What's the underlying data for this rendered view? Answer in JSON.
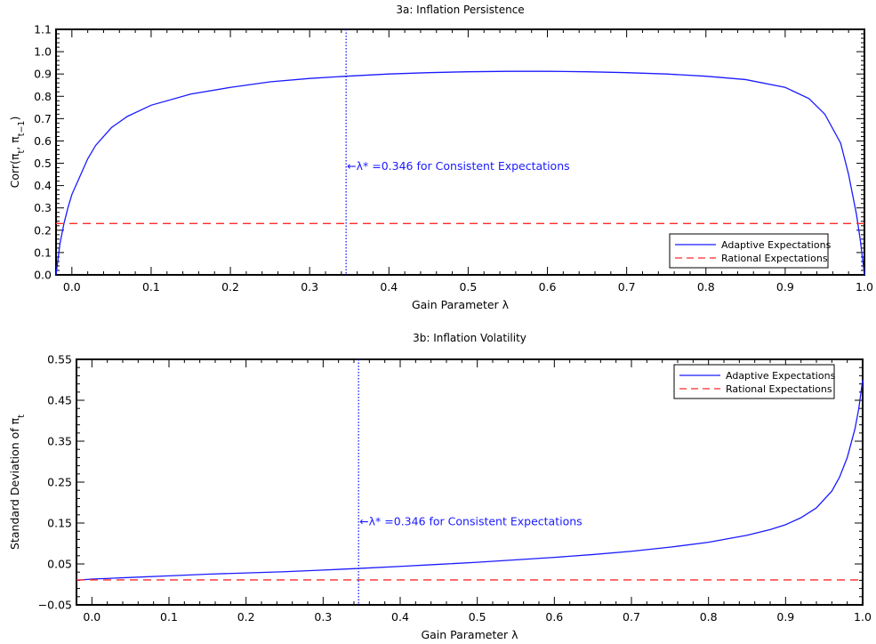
{
  "chart_data": [
    {
      "type": "line",
      "title": "3a: Inflation Persistence",
      "xlabel": "Gain Parameter λ",
      "ylabel": "Corr(πt, πt−1)",
      "xlim": [
        -0.02,
        1.0
      ],
      "ylim": [
        0.0,
        1.1
      ],
      "xticks": [
        "0.0",
        "0.1",
        "0.2",
        "0.3",
        "0.4",
        "0.5",
        "0.6",
        "0.7",
        "0.8",
        "0.9",
        "1.0"
      ],
      "yticks": [
        "0.0",
        "0.1",
        "0.2",
        "0.3",
        "0.4",
        "0.5",
        "0.6",
        "0.7",
        "0.8",
        "0.9",
        "1.0",
        "1.1"
      ],
      "grid": false,
      "legend_position": "bottom-right",
      "annotation": {
        "x": 0.346,
        "text": "←λ* =0.346 for Consistent Expectations",
        "color": "#1a1aff"
      },
      "series": [
        {
          "name": "Adaptive Expectations",
          "color": "#1a1aff",
          "style": "solid",
          "x": [
            -0.02,
            -0.015,
            -0.01,
            -0.005,
            0.0,
            0.01,
            0.02,
            0.03,
            0.05,
            0.07,
            0.1,
            0.15,
            0.2,
            0.25,
            0.3,
            0.346,
            0.4,
            0.45,
            0.5,
            0.55,
            0.6,
            0.65,
            0.7,
            0.75,
            0.8,
            0.85,
            0.9,
            0.93,
            0.95,
            0.97,
            0.98,
            0.99,
            0.995,
            1.0
          ],
          "y": [
            0.0,
            0.14,
            0.23,
            0.3,
            0.36,
            0.44,
            0.52,
            0.58,
            0.66,
            0.71,
            0.76,
            0.81,
            0.84,
            0.865,
            0.88,
            0.89,
            0.9,
            0.906,
            0.91,
            0.912,
            0.912,
            0.91,
            0.906,
            0.9,
            0.89,
            0.875,
            0.84,
            0.79,
            0.72,
            0.59,
            0.45,
            0.27,
            0.15,
            0.0
          ]
        },
        {
          "name": "Rational Expectations",
          "color": "#ff2a2a",
          "style": "dashed",
          "x": [
            -0.02,
            1.0
          ],
          "y": [
            0.23,
            0.23
          ]
        }
      ]
    },
    {
      "type": "line",
      "title": "3b: Inflation Volatility",
      "xlabel": "Gain Parameter λ",
      "ylabel": "Standard Deviation of πt",
      "xlim": [
        -0.02,
        1.0
      ],
      "ylim": [
        -0.05,
        0.55
      ],
      "xticks": [
        "0.0",
        "0.1",
        "0.2",
        "0.3",
        "0.4",
        "0.5",
        "0.6",
        "0.7",
        "0.8",
        "0.9",
        "1.0"
      ],
      "yticks": [
        "−0.05",
        "0.05",
        "0.15",
        "0.25",
        "0.35",
        "0.45",
        "0.55"
      ],
      "grid": false,
      "legend_position": "top-right",
      "annotation": {
        "x": 0.346,
        "text": "←λ* =0.346 for Consistent Expectations",
        "color": "#1a1aff"
      },
      "series": [
        {
          "name": "Adaptive Expectations",
          "color": "#1a1aff",
          "style": "solid",
          "x": [
            -0.02,
            0.0,
            0.05,
            0.1,
            0.15,
            0.2,
            0.25,
            0.3,
            0.346,
            0.4,
            0.45,
            0.5,
            0.55,
            0.6,
            0.65,
            0.7,
            0.75,
            0.8,
            0.85,
            0.88,
            0.9,
            0.92,
            0.94,
            0.96,
            0.97,
            0.98,
            0.99,
            0.995,
            1.0
          ],
          "y": [
            0.01,
            0.013,
            0.017,
            0.021,
            0.025,
            0.028,
            0.031,
            0.035,
            0.039,
            0.044,
            0.049,
            0.054,
            0.06,
            0.066,
            0.073,
            0.081,
            0.091,
            0.103,
            0.12,
            0.134,
            0.146,
            0.163,
            0.187,
            0.228,
            0.262,
            0.31,
            0.38,
            0.43,
            0.5
          ]
        },
        {
          "name": "Rational Expectations",
          "color": "#ff2a2a",
          "style": "dashed",
          "x": [
            -0.02,
            1.0
          ],
          "y": [
            0.011,
            0.011
          ]
        }
      ]
    }
  ]
}
